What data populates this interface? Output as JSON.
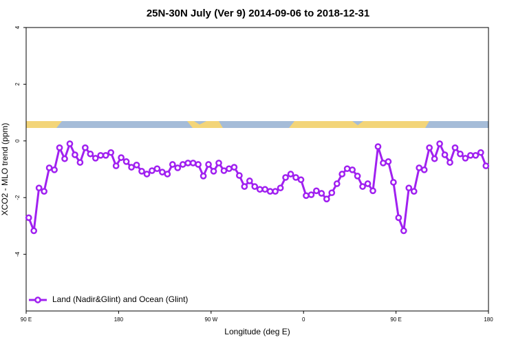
{
  "chart_data": {
    "type": "line",
    "title": "25N-30N July (Ver 9)   2014-09-06 to 2018-12-31",
    "x_label": "Longitude (deg E)",
    "y_label": "XCO2 - MLO trend (ppm)",
    "xlim": [
      90,
      540
    ],
    "xticks": [
      {
        "value": 90,
        "label": "90 E"
      },
      180,
      {
        "value": 270,
        "label": "90 W"
      },
      {
        "value": 360,
        "label": "0"
      },
      {
        "value": 450,
        "label": "90 E"
      },
      {
        "value": 540,
        "label": "180"
      }
    ],
    "ylim": [
      -6,
      4
    ],
    "yticks": [
      -4,
      -2,
      0,
      2,
      4
    ],
    "legend": "lower left",
    "x": [
      92.5,
      97.5,
      102.5,
      107.5,
      112.5,
      117.5,
      122.5,
      127.5,
      132.5,
      137.5,
      142.5,
      147.5,
      152.5,
      157.5,
      162.5,
      167.5,
      172.5,
      177.5,
      182.5,
      187.5,
      192.5,
      197.5,
      202.5,
      207.5,
      212.5,
      217.5,
      222.5,
      227.5,
      232.5,
      237.5,
      242.5,
      247.5,
      252.5,
      257.5,
      262.5,
      267.5,
      272.5,
      277.5,
      282.5,
      287.5,
      292.5,
      297.5,
      302.5,
      307.5,
      312.5,
      317.5,
      322.5,
      327.5,
      332.5,
      337.5,
      342.5,
      347.5,
      352.5,
      357.5,
      362.5,
      367.5,
      372.5,
      377.5,
      382.5,
      387.5,
      392.5,
      397.5,
      402.5,
      407.5,
      412.5,
      417.5,
      422.5,
      427.5,
      432.5,
      437.5,
      442.5,
      447.5,
      452.5,
      457.5,
      462.5,
      467.5,
      472.5,
      477.5,
      482.5,
      487.5,
      492.5,
      497.5,
      502.5,
      507.5,
      512.5,
      517.5,
      522.5,
      527.5,
      532.5,
      537.5
    ],
    "series": [
      {
        "name": "Land (Nadir&Glint) and Ocean (Glint)",
        "color": "#a020f0",
        "values": [
          -2.71,
          -3.17,
          -1.66,
          -1.78,
          -0.95,
          -1.02,
          -0.24,
          -0.63,
          -0.1,
          -0.49,
          -0.76,
          -0.24,
          -0.46,
          -0.61,
          -0.51,
          -0.51,
          -0.41,
          -0.88,
          -0.59,
          -0.73,
          -0.93,
          -0.85,
          -1.07,
          -1.17,
          -1.05,
          -0.98,
          -1.1,
          -1.17,
          -0.83,
          -0.95,
          -0.83,
          -0.78,
          -0.78,
          -0.83,
          -1.24,
          -0.83,
          -1.07,
          -0.78,
          -1.05,
          -0.98,
          -0.93,
          -1.22,
          -1.61,
          -1.41,
          -1.61,
          -1.71,
          -1.71,
          -1.78,
          -1.78,
          -1.66,
          -1.29,
          -1.17,
          -1.29,
          -1.37,
          -1.93,
          -1.9,
          -1.76,
          -1.85,
          -2.05,
          -1.83,
          -1.51,
          -1.17,
          -0.98,
          -1.02,
          -1.24,
          -1.61,
          -1.51,
          -1.76,
          -0.2,
          -0.78,
          -0.73,
          -1.46,
          -2.71,
          -3.17,
          -1.66,
          -1.78,
          -0.95,
          -1.02,
          -0.24,
          -0.63,
          -0.1,
          -0.49,
          -0.76,
          -0.24,
          -0.46,
          -0.61,
          -0.51,
          -0.51,
          -0.41,
          -0.88
        ]
      }
    ]
  }
}
